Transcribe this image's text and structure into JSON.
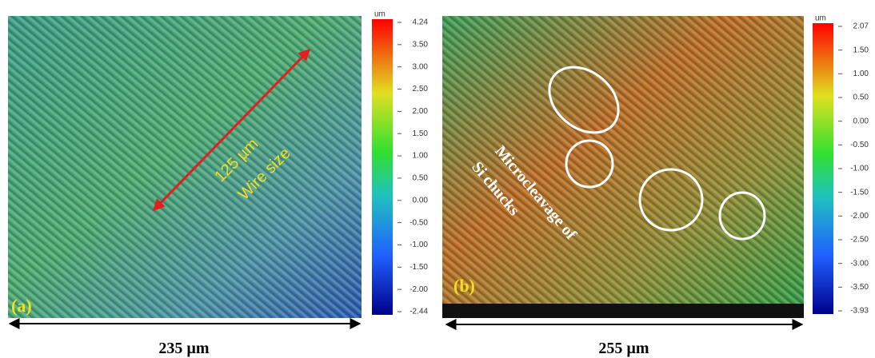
{
  "panels": [
    {
      "label": "(a)",
      "annotations": [
        "125 µm",
        "Wire size"
      ],
      "scale_bar": "235 µm",
      "colorbar": {
        "unit": "um",
        "ticks": [
          "4.24",
          "3.50",
          "3.00",
          "2.50",
          "2.00",
          "1.50",
          "1.00",
          "0.50",
          "0.00",
          "-0.50",
          "-1.00",
          "-1.50",
          "-2.00",
          "-2.44"
        ]
      }
    },
    {
      "label": "(b)",
      "annotations": [
        "Microcleavage of",
        "Si chucks"
      ],
      "scale_bar": "255 µm",
      "colorbar": {
        "unit": "um",
        "ticks": [
          "2.07",
          "1.50",
          "1.00",
          "0.50",
          "0.00",
          "-0.50",
          "-1.00",
          "-1.50",
          "-2.00",
          "-2.50",
          "-3.00",
          "-3.50",
          "-3.93"
        ]
      }
    }
  ]
}
